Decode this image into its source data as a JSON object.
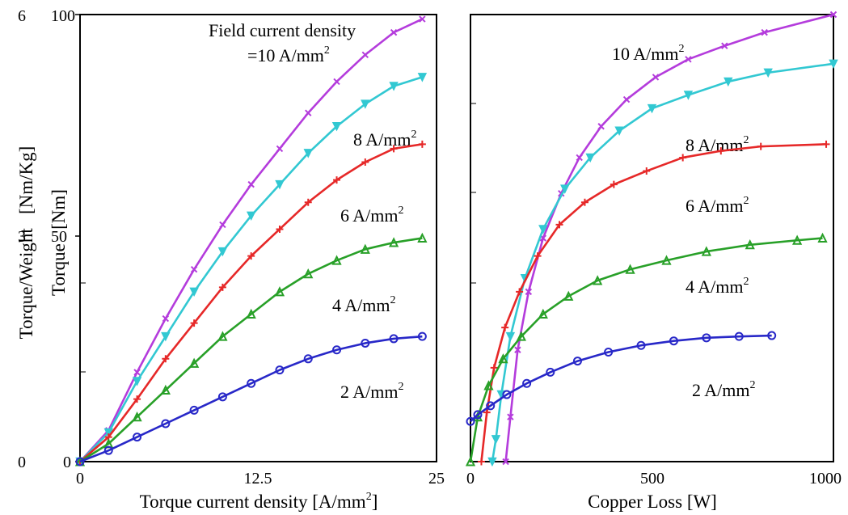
{
  "chart_data": [
    {
      "type": "line",
      "panel": "left",
      "xlabel": "Torque current density [A/mm",
      "xlabel_sup": "2",
      "xlabel_end": "]",
      "ylabel_outer": "Torque/Weight   [Nm/Kg]",
      "ylabel_inner": "Torque   [Nm]",
      "xlim": [
        0,
        25
      ],
      "ylim": [
        0,
        100
      ],
      "x_ticks": [
        "0",
        "12.5",
        "25"
      ],
      "y_ticks_torque": [
        "0",
        "50",
        "100"
      ],
      "y_ticks_weight": [
        "0",
        "3",
        "6"
      ],
      "title_line1": "Field current density",
      "title_line2": "=10 A/mm",
      "title_sup": "2",
      "x": [
        0,
        2,
        4,
        6,
        8,
        10,
        12,
        14,
        16,
        18,
        20,
        22,
        24
      ],
      "series": [
        {
          "name": "10 A/mm2",
          "label": "",
          "color": "#b43cdc",
          "marker": "x",
          "values": [
            0,
            7,
            20,
            32,
            43,
            53,
            62,
            70,
            78,
            85,
            91,
            96,
            99
          ]
        },
        {
          "name": "8 A/mm2",
          "label": "8 A/mm",
          "color": "#32c8d2",
          "marker": "tri-down",
          "values": [
            0,
            6.5,
            18,
            28,
            38,
            47,
            55,
            62,
            69,
            75,
            80,
            84,
            86
          ]
        },
        {
          "name": "6 A/mm2",
          "label": "6 A/mm",
          "color": "#e62828",
          "marker": "plus",
          "values": [
            0,
            5.5,
            14,
            23,
            31,
            39,
            46,
            52,
            58,
            63,
            67,
            70,
            71
          ]
        },
        {
          "name": "4 A/mm2",
          "label": "4 A/mm",
          "color": "#28a028",
          "marker": "tri-up",
          "values": [
            0,
            4,
            10,
            16,
            22,
            28,
            33,
            38,
            42,
            45,
            47.5,
            49,
            50
          ]
        },
        {
          "name": "2 A/mm2",
          "label": "2 A/mm",
          "color": "#2828c8",
          "marker": "circle",
          "values": [
            0,
            2.5,
            5.5,
            8.5,
            11.5,
            14.5,
            17.5,
            20.5,
            23,
            25,
            26.5,
            27.5,
            28
          ]
        }
      ]
    },
    {
      "type": "line",
      "panel": "right",
      "xlabel": "Copper Loss [W]",
      "xlim": [
        0,
        1000
      ],
      "ylim": [
        0,
        100
      ],
      "x_ticks": [
        "0",
        "500",
        "1000"
      ],
      "series": [
        {
          "name": "10 A/mm2",
          "label": "10 A/mm",
          "color": "#b43cdc",
          "marker": "x",
          "x": [
            97,
            110,
            130,
            160,
            200,
            250,
            300,
            360,
            430,
            510,
            600,
            700,
            810,
            1000
          ],
          "y": [
            0,
            10,
            25,
            38,
            50,
            60,
            68,
            75,
            81,
            86,
            90,
            93,
            96,
            100
          ]
        },
        {
          "name": "8 A/mm2",
          "label": "8 A/mm",
          "color": "#32c8d2",
          "marker": "tri-down",
          "x": [
            60,
            70,
            85,
            110,
            150,
            200,
            260,
            330,
            410,
            500,
            600,
            710,
            820,
            1000
          ],
          "y": [
            0,
            5,
            15,
            28,
            41,
            52,
            61,
            68,
            74,
            79,
            82,
            85,
            87,
            89
          ]
        },
        {
          "name": "6 A/mm2",
          "label": "6 A/mm",
          "color": "#e62828",
          "marker": "plus",
          "x": [
            30,
            45,
            65,
            95,
            135,
            185,
            245,
            315,
            395,
            485,
            585,
            690,
            800,
            980
          ],
          "y": [
            0,
            11,
            21,
            30,
            38,
            46,
            53,
            58,
            62,
            65,
            68,
            69.5,
            70.5,
            71
          ]
        },
        {
          "name": "4 A/mm2",
          "label": "4 A/mm",
          "color": "#28a028",
          "marker": "tri-up",
          "x": [
            0,
            20,
            50,
            90,
            140,
            200,
            270,
            350,
            440,
            540,
            650,
            770,
            900,
            970
          ],
          "y": [
            0,
            10,
            17,
            23,
            28,
            33,
            37,
            40.5,
            43,
            45,
            47,
            48.5,
            49.5,
            50
          ]
        },
        {
          "name": "2 A/mm2",
          "label": "2 A/mm",
          "color": "#2828c8",
          "marker": "circle",
          "x": [
            0,
            20,
            55,
            100,
            155,
            220,
            295,
            380,
            470,
            560,
            650,
            740,
            830
          ],
          "y": [
            9,
            10.5,
            12.5,
            15,
            17.5,
            20,
            22.5,
            24.5,
            26,
            27,
            27.7,
            28,
            28.2
          ]
        }
      ]
    }
  ],
  "sup2": "2"
}
